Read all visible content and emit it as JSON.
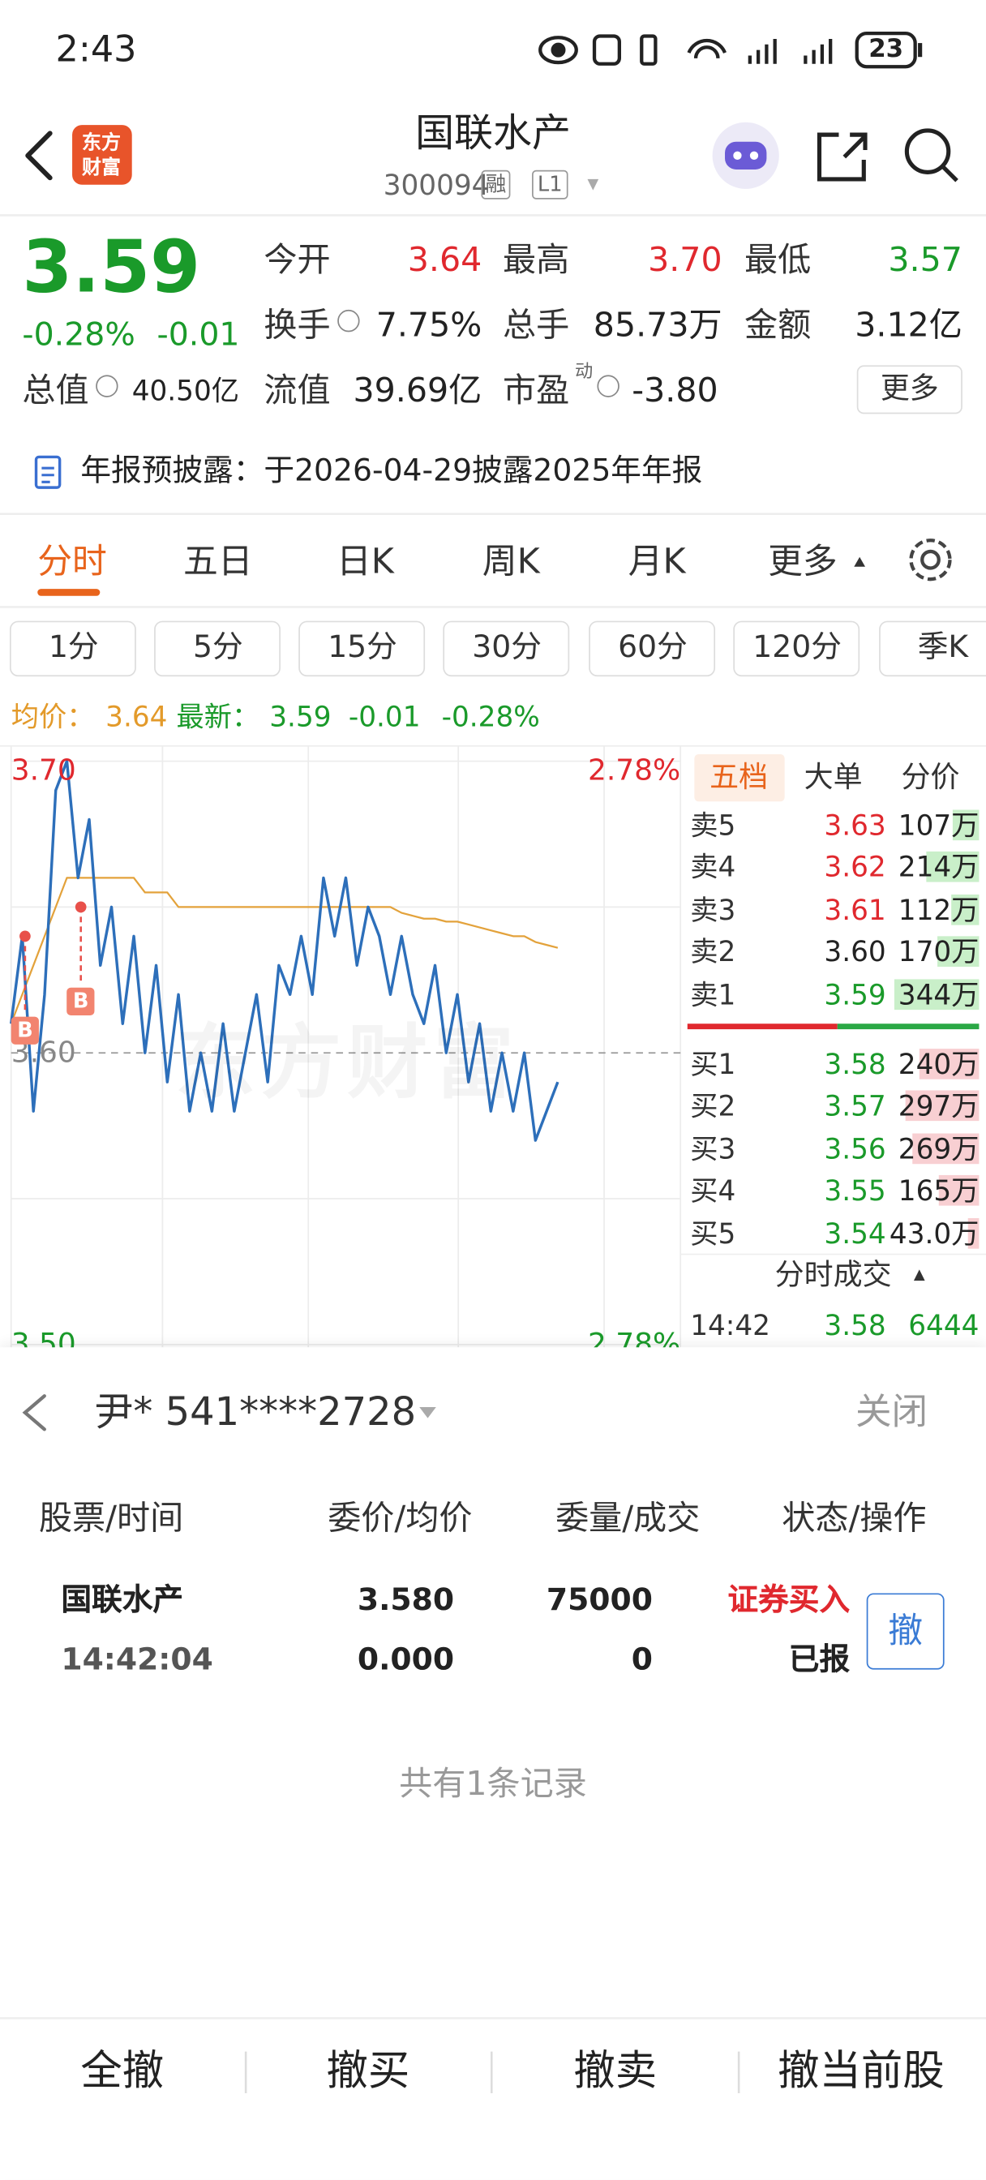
{
  "status_bar": {
    "time": "2:43",
    "battery": "23"
  },
  "header": {
    "logo": [
      "东方",
      "财富"
    ],
    "title": "国联水产",
    "code": "300094",
    "tags": [
      "融",
      "L1"
    ]
  },
  "quote": {
    "price": "3.59",
    "change_pct": "-0.28%",
    "change": "-0.01",
    "rows": [
      [
        {
          "label": "今开",
          "value": "3.64",
          "color": "#e0282e"
        },
        {
          "label": "最高",
          "value": "3.70",
          "color": "#e0282e"
        },
        {
          "label": "最低",
          "value": "3.57",
          "color": "#1a9a2a"
        }
      ],
      [
        {
          "label": "换手",
          "value": "7.75%",
          "color": "#222222"
        },
        {
          "label": "总手",
          "value": "85.73万",
          "color": "#222222"
        },
        {
          "label": "金额",
          "value": "3.12亿",
          "color": "#222222"
        }
      ],
      [
        {
          "label": "总值",
          "value": "40.50亿",
          "color": "#222222"
        },
        {
          "label": "流值",
          "value": "39.69亿",
          "color": "#222222"
        },
        {
          "label": "市盈",
          "sup": "动",
          "value": "-3.80",
          "color": "#222222"
        }
      ]
    ],
    "more": "更多"
  },
  "notice": "年报预披露：于2026-04-29披露2025年年报",
  "tabs": [
    "分时",
    "五日",
    "日K",
    "周K",
    "月K",
    "更多"
  ],
  "periods": [
    "1分",
    "5分",
    "15分",
    "30分",
    "60分",
    "120分",
    "季K"
  ],
  "info_line": {
    "avg_label": "均价：",
    "avg": "3.64",
    "latest_label": "最新：",
    "latest": "3.59",
    "change": "-0.01",
    "change_pct": "-0.28%"
  },
  "chart_data": {
    "type": "line",
    "watermark": "东方财富",
    "xlim": [
      0,
      240
    ],
    "ylim": [
      3.5,
      3.7
    ],
    "yticks": [
      {
        "value": 3.7,
        "label": "3.70"
      },
      {
        "value": 3.6,
        "label": "3.60"
      },
      {
        "value": 3.5,
        "label": "3.50"
      }
    ],
    "pct_labels": [
      "2.78%",
      "2.78%"
    ],
    "x": [
      0,
      4,
      8,
      12,
      16,
      20,
      24,
      28,
      32,
      36,
      40,
      44,
      48,
      52,
      56,
      60,
      64,
      68,
      72,
      76,
      80,
      84,
      88,
      92,
      96,
      100,
      104,
      108,
      112,
      116,
      120,
      124,
      128,
      132,
      136,
      140,
      144,
      148,
      152,
      156,
      160,
      164,
      168,
      172,
      176,
      180,
      184,
      188,
      192,
      196
    ],
    "series": [
      {
        "color": "#2d6fba",
        "values": [
          3.61,
          3.64,
          3.58,
          3.62,
          3.69,
          3.7,
          3.66,
          3.68,
          3.63,
          3.65,
          3.61,
          3.64,
          3.6,
          3.63,
          3.59,
          3.62,
          3.58,
          3.6,
          3.58,
          3.61,
          3.58,
          3.6,
          3.62,
          3.59,
          3.63,
          3.62,
          3.64,
          3.62,
          3.66,
          3.64,
          3.66,
          3.63,
          3.65,
          3.64,
          3.62,
          3.64,
          3.62,
          3.61,
          3.63,
          3.6,
          3.62,
          3.59,
          3.61,
          3.58,
          3.6,
          3.58,
          3.6,
          3.57,
          3.58,
          3.59
        ]
      },
      {
        "color": "#e3a23b",
        "values": [
          3.61,
          3.62,
          3.63,
          3.64,
          3.65,
          3.66,
          3.66,
          3.66,
          3.66,
          3.66,
          3.66,
          3.66,
          3.655,
          3.655,
          3.655,
          3.65,
          3.65,
          3.65,
          3.65,
          3.65,
          3.65,
          3.65,
          3.65,
          3.65,
          3.65,
          3.65,
          3.65,
          3.65,
          3.65,
          3.65,
          3.65,
          3.65,
          3.65,
          3.65,
          3.65,
          3.648,
          3.647,
          3.646,
          3.646,
          3.645,
          3.645,
          3.644,
          3.643,
          3.642,
          3.641,
          3.64,
          3.64,
          3.638,
          3.637,
          3.636
        ]
      }
    ],
    "markers": [
      {
        "label": "B",
        "x": 5,
        "price": 3.64
      },
      {
        "label": "B",
        "x": 25,
        "price": 3.65
      }
    ]
  },
  "order_book": {
    "tabs": [
      "五档",
      "大单",
      "分价"
    ],
    "asks": [
      {
        "label": "卖5",
        "price": "3.63",
        "color": "#e0282e",
        "volume": 107,
        "volume_label": "107万"
      },
      {
        "label": "卖4",
        "price": "3.62",
        "color": "#e0282e",
        "volume": 214,
        "volume_label": "214万"
      },
      {
        "label": "卖3",
        "price": "3.61",
        "color": "#e0282e",
        "volume": 112,
        "volume_label": "112万"
      },
      {
        "label": "卖2",
        "price": "3.60",
        "color": "#222222",
        "volume": 170,
        "volume_label": "170万"
      },
      {
        "label": "卖1",
        "price": "3.59",
        "color": "#1a9a2a",
        "volume": 344,
        "volume_label": "344万"
      }
    ],
    "bids": [
      {
        "label": "买1",
        "price": "3.58",
        "color": "#1a9a2a",
        "volume": 240,
        "volume_label": "240万"
      },
      {
        "label": "买2",
        "price": "3.57",
        "color": "#1a9a2a",
        "volume": 297,
        "volume_label": "297万"
      },
      {
        "label": "买3",
        "price": "3.56",
        "color": "#1a9a2a",
        "volume": 269,
        "volume_label": "269万"
      },
      {
        "label": "买4",
        "price": "3.55",
        "color": "#1a9a2a",
        "volume": 165,
        "volume_label": "165万"
      },
      {
        "label": "买5",
        "price": "3.54",
        "color": "#1a9a2a",
        "volume": 43,
        "volume_label": "43.0万"
      }
    ],
    "trades_title": "分时成交",
    "trades": [
      {
        "time": "14:42",
        "price": "3.58",
        "volume": "6444"
      }
    ]
  },
  "orders": {
    "account": "尹* 541****2728",
    "close": "关闭",
    "headers": [
      "股票/时间",
      "委价/均价",
      "委量/成交",
      "状态/操作"
    ],
    "rows": [
      {
        "name": "国联水产",
        "time": "14:42:04",
        "price": "3.580",
        "avg_price": "0.000",
        "quantity": "75000",
        "filled": "0",
        "action": "证券买入",
        "status": "已报",
        "button": "撤"
      }
    ],
    "summary": "共有1条记录"
  },
  "bottom_bar": [
    "全撤",
    "撤买",
    "撤卖",
    "撤当前股"
  ]
}
